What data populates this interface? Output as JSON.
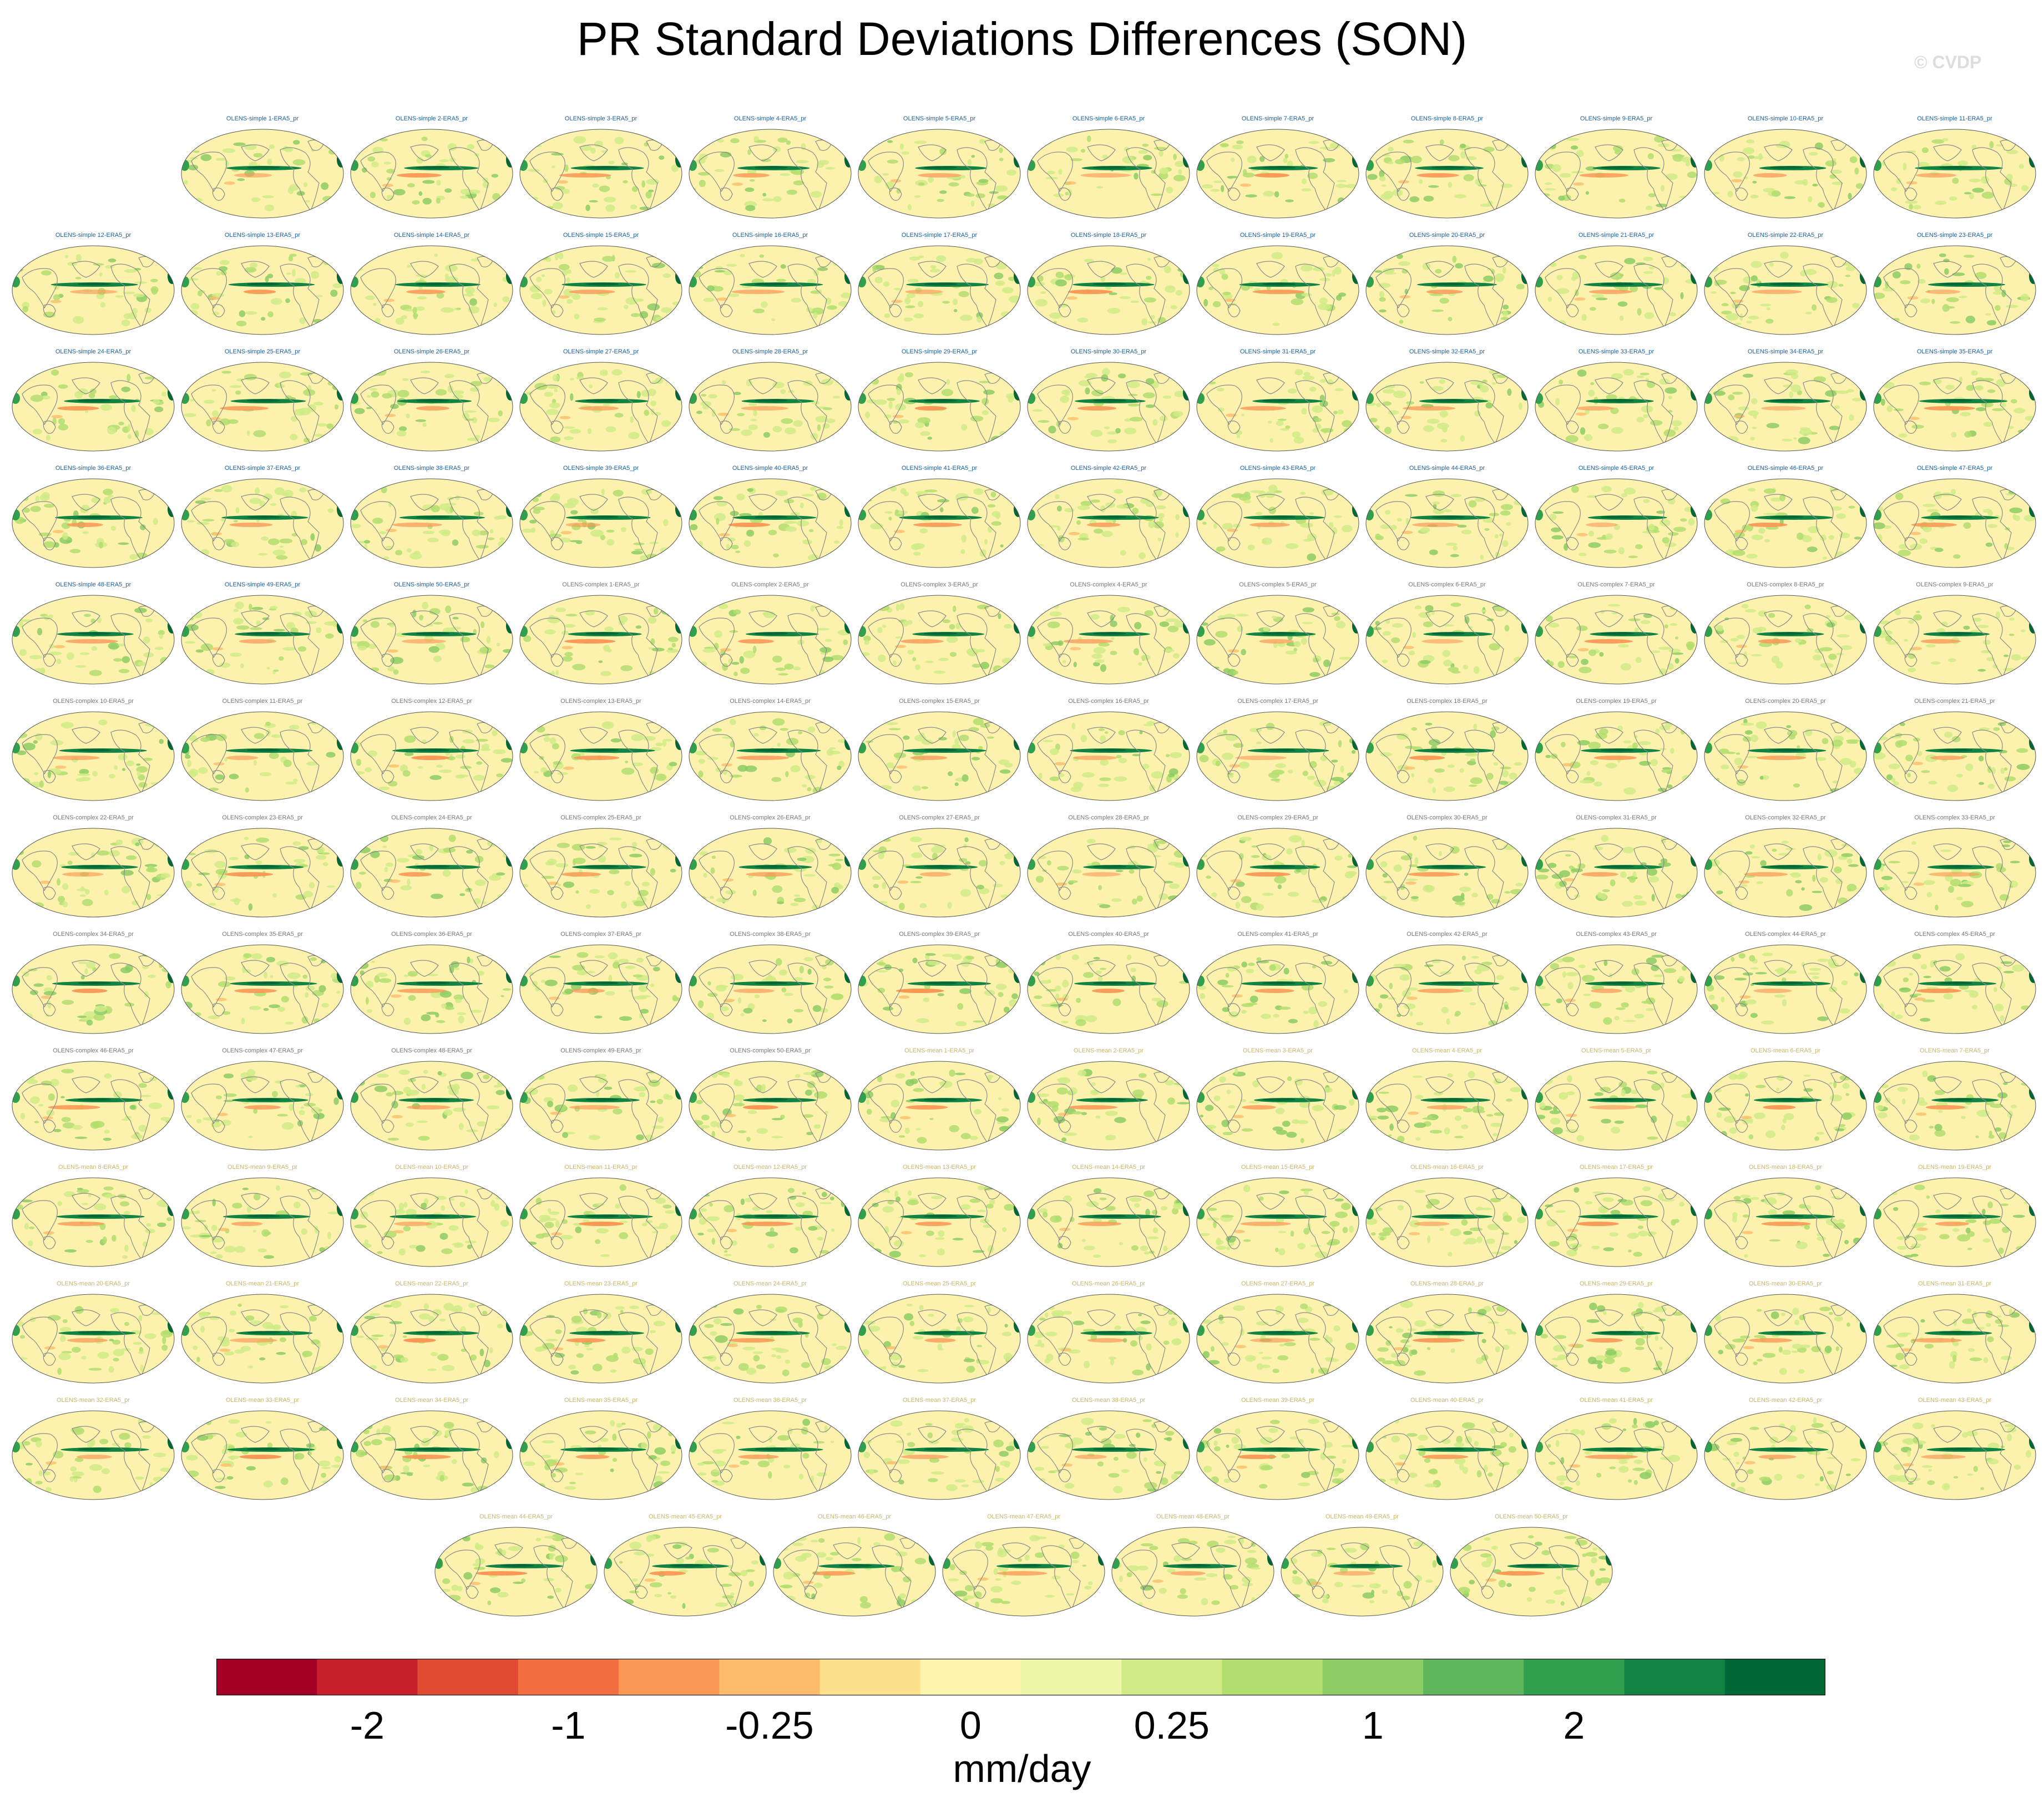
{
  "title": "PR Standard Deviations Differences (SON)",
  "watermark": "© CVDP",
  "colors": {
    "land": "#8a8a8a",
    "background": "#fcf2ad",
    "label_simple": "#1a5f9e",
    "label_complex": "#777777",
    "label_mean": "#c9b46a"
  },
  "chart_data": {
    "type": "heatmap",
    "layout": "small-multiples",
    "panels": [
      "OLENS-simple 1-ERA5_pr",
      "OLENS-simple 2-ERA5_pr",
      "OLENS-simple 3-ERA5_pr",
      "OLENS-simple 4-ERA5_pr",
      "OLENS-simple 5-ERA5_pr",
      "OLENS-simple 6-ERA5_pr",
      "OLENS-simple 7-ERA5_pr",
      "OLENS-simple 8-ERA5_pr",
      "OLENS-simple 9-ERA5_pr",
      "OLENS-simple 10-ERA5_pr",
      "OLENS-simple 11-ERA5_pr",
      "OLENS-simple 12-ERA5_pr",
      "OLENS-simple 13-ERA5_pr",
      "OLENS-simple 14-ERA5_pr",
      "OLENS-simple 15-ERA5_pr",
      "OLENS-simple 16-ERA5_pr",
      "OLENS-simple 17-ERA5_pr",
      "OLENS-simple 18-ERA5_pr",
      "OLENS-simple 19-ERA5_pr",
      "OLENS-simple 20-ERA5_pr",
      "OLENS-simple 21-ERA5_pr",
      "OLENS-simple 22-ERA5_pr",
      "OLENS-simple 23-ERA5_pr",
      "OLENS-simple 24-ERA5_pr",
      "OLENS-simple 25-ERA5_pr",
      "OLENS-simple 26-ERA5_pr",
      "OLENS-simple 27-ERA5_pr",
      "OLENS-simple 28-ERA5_pr",
      "OLENS-simple 29-ERA5_pr",
      "OLENS-simple 30-ERA5_pr",
      "OLENS-simple 31-ERA5_pr",
      "OLENS-simple 32-ERA5_pr",
      "OLENS-simple 33-ERA5_pr",
      "OLENS-simple 34-ERA5_pr",
      "OLENS-simple 35-ERA5_pr",
      "OLENS-simple 36-ERA5_pr",
      "OLENS-simple 37-ERA5_pr",
      "OLENS-simple 38-ERA5_pr",
      "OLENS-simple 39-ERA5_pr",
      "OLENS-simple 40-ERA5_pr",
      "OLENS-simple 41-ERA5_pr",
      "OLENS-simple 42-ERA5_pr",
      "OLENS-simple 43-ERA5_pr",
      "OLENS-simple 44-ERA5_pr",
      "OLENS-simple 45-ERA5_pr",
      "OLENS-simple 46-ERA5_pr",
      "OLENS-simple 47-ERA5_pr",
      "OLENS-simple 48-ERA5_pr",
      "OLENS-simple 49-ERA5_pr",
      "OLENS-simple 50-ERA5_pr",
      "OLENS-complex 1-ERA5_pr",
      "OLENS-complex 2-ERA5_pr",
      "OLENS-complex 3-ERA5_pr",
      "OLENS-complex 4-ERA5_pr",
      "OLENS-complex 5-ERA5_pr",
      "OLENS-complex 6-ERA5_pr",
      "OLENS-complex 7-ERA5_pr",
      "OLENS-complex 8-ERA5_pr",
      "OLENS-complex 9-ERA5_pr",
      "OLENS-complex 10-ERA5_pr",
      "OLENS-complex 11-ERA5_pr",
      "OLENS-complex 12-ERA5_pr",
      "OLENS-complex 13-ERA5_pr",
      "OLENS-complex 14-ERA5_pr",
      "OLENS-complex 15-ERA5_pr",
      "OLENS-complex 16-ERA5_pr",
      "OLENS-complex 17-ERA5_pr",
      "OLENS-complex 18-ERA5_pr",
      "OLENS-complex 19-ERA5_pr",
      "OLENS-complex 20-ERA5_pr",
      "OLENS-complex 21-ERA5_pr",
      "OLENS-complex 22-ERA5_pr",
      "OLENS-complex 23-ERA5_pr",
      "OLENS-complex 24-ERA5_pr",
      "OLENS-complex 25-ERA5_pr",
      "OLENS-complex 26-ERA5_pr",
      "OLENS-complex 27-ERA5_pr",
      "OLENS-complex 28-ERA5_pr",
      "OLENS-complex 29-ERA5_pr",
      "OLENS-complex 30-ERA5_pr",
      "OLENS-complex 31-ERA5_pr",
      "OLENS-complex 32-ERA5_pr",
      "OLENS-complex 33-ERA5_pr",
      "OLENS-complex 34-ERA5_pr",
      "OLENS-complex 35-ERA5_pr",
      "OLENS-complex 36-ERA5_pr",
      "OLENS-complex 37-ERA5_pr",
      "OLENS-complex 38-ERA5_pr",
      "OLENS-complex 39-ERA5_pr",
      "OLENS-complex 40-ERA5_pr",
      "OLENS-complex 41-ERA5_pr",
      "OLENS-complex 42-ERA5_pr",
      "OLENS-complex 43-ERA5_pr",
      "OLENS-complex 44-ERA5_pr",
      "OLENS-complex 45-ERA5_pr",
      "OLENS-complex 46-ERA5_pr",
      "OLENS-complex 47-ERA5_pr",
      "OLENS-complex 48-ERA5_pr",
      "OLENS-complex 49-ERA5_pr",
      "OLENS-complex 50-ERA5_pr",
      "OLENS-mean 1-ERA5_pr",
      "OLENS-mean 2-ERA5_pr",
      "OLENS-mean 3-ERA5_pr",
      "OLENS-mean 4-ERA5_pr",
      "OLENS-mean 5-ERA5_pr",
      "OLENS-mean 6-ERA5_pr",
      "OLENS-mean 7-ERA5_pr",
      "OLENS-mean 8-ERA5_pr",
      "OLENS-mean 9-ERA5_pr",
      "OLENS-mean 10-ERA5_pr",
      "OLENS-mean 11-ERA5_pr",
      "OLENS-mean 12-ERA5_pr",
      "OLENS-mean 13-ERA5_pr",
      "OLENS-mean 14-ERA5_pr",
      "OLENS-mean 15-ERA5_pr",
      "OLENS-mean 16-ERA5_pr",
      "OLENS-mean 17-ERA5_pr",
      "OLENS-mean 18-ERA5_pr",
      "OLENS-mean 19-ERA5_pr",
      "OLENS-mean 20-ERA5_pr",
      "OLENS-mean 21-ERA5_pr",
      "OLENS-mean 22-ERA5_pr",
      "OLENS-mean 23-ERA5_pr",
      "OLENS-mean 24-ERA5_pr",
      "OLENS-mean 25-ERA5_pr",
      "OLENS-mean 26-ERA5_pr",
      "OLENS-mean 27-ERA5_pr",
      "OLENS-mean 28-ERA5_pr",
      "OLENS-mean 29-ERA5_pr",
      "OLENS-mean 30-ERA5_pr",
      "OLENS-mean 31-ERA5_pr",
      "OLENS-mean 32-ERA5_pr",
      "OLENS-mean 33-ERA5_pr",
      "OLENS-mean 34-ERA5_pr",
      "OLENS-mean 35-ERA5_pr",
      "OLENS-mean 36-ERA5_pr",
      "OLENS-mean 37-ERA5_pr",
      "OLENS-mean 38-ERA5_pr",
      "OLENS-mean 39-ERA5_pr",
      "OLENS-mean 40-ERA5_pr",
      "OLENS-mean 41-ERA5_pr",
      "OLENS-mean 42-ERA5_pr",
      "OLENS-mean 43-ERA5_pr",
      "OLENS-mean 44-ERA5_pr",
      "OLENS-mean 45-ERA5_pr",
      "OLENS-mean 46-ERA5_pr",
      "OLENS-mean 47-ERA5_pr",
      "OLENS-mean 48-ERA5_pr",
      "OLENS-mean 49-ERA5_pr",
      "OLENS-mean 50-ERA5_pr"
    ],
    "colorbar": {
      "colors": [
        "#a50026",
        "#c8202a",
        "#e04a31",
        "#f26d40",
        "#f99755",
        "#fcbc6c",
        "#fde08c",
        "#fdf5ad",
        "#ecf6a6",
        "#d0eb86",
        "#b1de6f",
        "#8ccc64",
        "#5eb55c",
        "#30a04e",
        "#128343",
        "#006837"
      ],
      "tick_labels": [
        "-2",
        "-1",
        "-0.25",
        "0",
        "0.25",
        "1",
        "2"
      ],
      "tick_boundaries": [
        1,
        3,
        5,
        7,
        9,
        11,
        13
      ],
      "units": "mm/day"
    }
  }
}
